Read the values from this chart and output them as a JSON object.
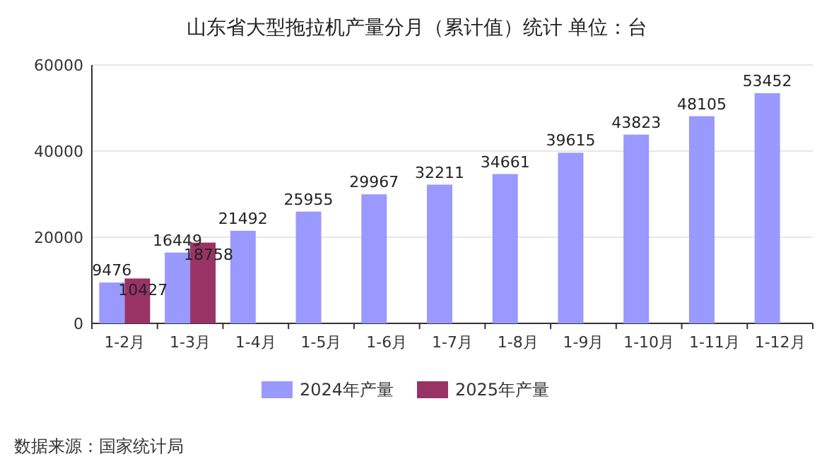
{
  "chart_data": {
    "type": "bar",
    "title": "山东省大型拖拉机产量分月（累计值）统计 单位：台",
    "categories": [
      "1-2月",
      "1-3月",
      "1-4月",
      "1-5月",
      "1-6月",
      "1-7月",
      "1-8月",
      "1-9月",
      "1-10月",
      "1-11月",
      "1-12月"
    ],
    "series": [
      {
        "name": "2024年产量",
        "color": "#9999ff",
        "values": [
          9476,
          16449,
          21492,
          25955,
          29967,
          32211,
          34661,
          39615,
          43823,
          48105,
          53452
        ]
      },
      {
        "name": "2025年产量",
        "color": "#993366",
        "values": [
          10427,
          18758,
          null,
          null,
          null,
          null,
          null,
          null,
          null,
          null,
          null
        ]
      }
    ],
    "ylim": [
      0,
      60000
    ],
    "yticks": [
      0,
      20000,
      40000,
      60000
    ],
    "grid": "y",
    "data_labels": true,
    "legend": "bottom",
    "annotations": [
      "数据来源：国家统计局"
    ]
  }
}
